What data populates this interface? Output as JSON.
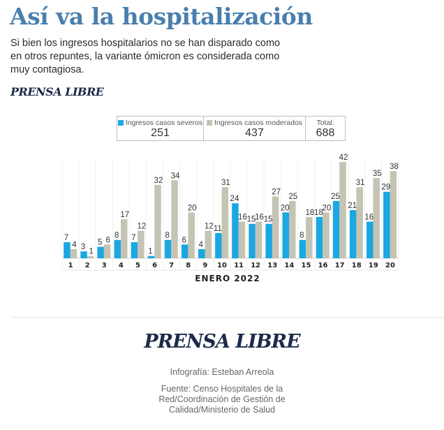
{
  "header": {
    "title": "Así va la hospitalización",
    "subtitle": "Si bien los ingresos hospitalarios no se han disparado como en otros repuntes, la variante ómicron es considerada como muy contagiosa.",
    "brand": "PRENSA LIBRE"
  },
  "legend": {
    "severe_label": "Ingresos casos severos",
    "severe_total": "251",
    "moderate_label": "Ingresos casos moderados",
    "moderate_total": "437",
    "total_label": "Total:",
    "total_value": "688"
  },
  "colors": {
    "severe": "#1ba7e2",
    "moderate": "#c5c3b3",
    "title": "#4a7fad"
  },
  "chart_data": {
    "type": "bar",
    "title": "Así va la hospitalización",
    "xlabel": "ENERO 2022",
    "ylabel": "",
    "categories": [
      "1",
      "2",
      "3",
      "4",
      "5",
      "6",
      "7",
      "8",
      "9",
      "10",
      "11",
      "12",
      "13",
      "14",
      "15",
      "16",
      "17",
      "18",
      "19",
      "20"
    ],
    "series": [
      {
        "name": "Ingresos casos severos",
        "values": [
          7,
          3,
          5,
          8,
          7,
          1,
          8,
          6,
          4,
          11,
          24,
          15,
          15,
          20,
          8,
          18,
          25,
          21,
          16,
          29
        ]
      },
      {
        "name": "Ingresos casos moderados",
        "values": [
          4,
          1,
          6,
          17,
          12,
          32,
          34,
          20,
          12,
          31,
          16,
          16,
          27,
          25,
          18,
          20,
          42,
          31,
          35,
          38
        ]
      }
    ],
    "ylim": [
      0,
      42
    ],
    "grid": "vertical separators",
    "legend_position": "top"
  },
  "footer": {
    "brand": "PRENSA LIBRE",
    "credit": "Infografía: Esteban Arreola",
    "source": "Fuente: Censo Hospitales de la Red/Coordinación de Gestión de Calidad/Ministerio de Salud"
  }
}
